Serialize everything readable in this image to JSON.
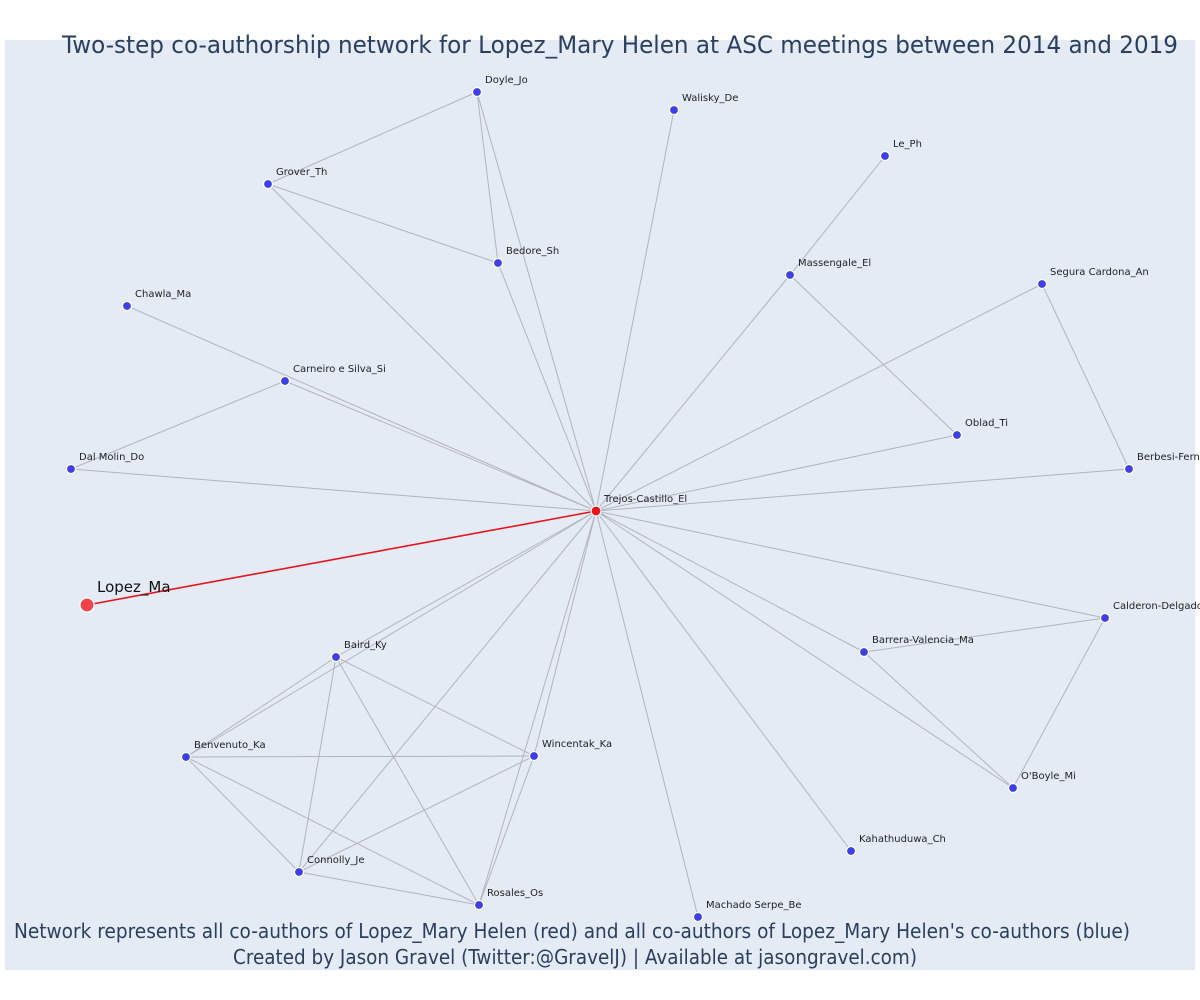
{
  "title": "Two-step co-authorship network for Lopez_Mary Helen at ASC meetings between 2014 and 2019",
  "caption": {
    "line1": "Network represents all co-authors of Lopez_Mary Helen (red) and all co-authors of Lopez_Mary Helen's co-authors (blue)",
    "line2": "Created by Jason Gravel (Twitter:@GravelJ) | Available at jasongravel.com)"
  },
  "colors": {
    "background": "#e5ebf5",
    "edge": "#b0b4c0",
    "focal_edge": "#e8141c",
    "focal_node": "#f0424a",
    "coauthor_node": "#e8141c",
    "second_step_node": "#3f3fe8"
  },
  "nodes": [
    {
      "id": "lopez",
      "label": "Lopez_Ma",
      "role": "focal"
    },
    {
      "id": "trejos",
      "label": "Trejos-Castillo_El",
      "role": "coauthor"
    },
    {
      "id": "doyle",
      "label": "Doyle_Jo",
      "role": "second"
    },
    {
      "id": "walisky",
      "label": "Walisky_De",
      "role": "second"
    },
    {
      "id": "le",
      "label": "Le_Ph",
      "role": "second"
    },
    {
      "id": "grover",
      "label": "Grover_Th",
      "role": "second"
    },
    {
      "id": "bedore",
      "label": "Bedore_Sh",
      "role": "second"
    },
    {
      "id": "massengale",
      "label": "Massengale_El",
      "role": "second"
    },
    {
      "id": "segura",
      "label": "Segura Cardona_An",
      "role": "second"
    },
    {
      "id": "chawla",
      "label": "Chawla_Ma",
      "role": "second"
    },
    {
      "id": "carneiro",
      "label": "Carneiro e Silva_Si",
      "role": "second"
    },
    {
      "id": "oblad",
      "label": "Oblad_Ti",
      "role": "second"
    },
    {
      "id": "dalmolin",
      "label": "Dal Molin_Do",
      "role": "second"
    },
    {
      "id": "berbesi",
      "label": "Berbesi-Fern",
      "role": "second"
    },
    {
      "id": "calderon",
      "label": "Calderon-Delgado",
      "role": "second"
    },
    {
      "id": "barrera",
      "label": "Barrera-Valencia_Ma",
      "role": "second"
    },
    {
      "id": "baird",
      "label": "Baird_Ky",
      "role": "second"
    },
    {
      "id": "benvenuto",
      "label": "Benvenuto_Ka",
      "role": "second"
    },
    {
      "id": "wincentak",
      "label": "Wincentak_Ka",
      "role": "second"
    },
    {
      "id": "oboyle",
      "label": "O'Boyle_Mi",
      "role": "second"
    },
    {
      "id": "kahathuduwa",
      "label": "Kahathuduwa_Ch",
      "role": "second"
    },
    {
      "id": "connolly",
      "label": "Connolly_Je",
      "role": "second"
    },
    {
      "id": "rosales",
      "label": "Rosales_Os",
      "role": "second"
    },
    {
      "id": "machado",
      "label": "Machado Serpe_Be",
      "role": "second"
    }
  ],
  "edges": [
    [
      "lopez",
      "trejos"
    ],
    [
      "trejos",
      "doyle"
    ],
    [
      "trejos",
      "walisky"
    ],
    [
      "trejos",
      "grover"
    ],
    [
      "trejos",
      "bedore"
    ],
    [
      "trejos",
      "massengale"
    ],
    [
      "trejos",
      "segura"
    ],
    [
      "trejos",
      "chawla"
    ],
    [
      "trejos",
      "carneiro"
    ],
    [
      "trejos",
      "oblad"
    ],
    [
      "trejos",
      "dalmolin"
    ],
    [
      "trejos",
      "berbesi"
    ],
    [
      "trejos",
      "calderon"
    ],
    [
      "trejos",
      "barrera"
    ],
    [
      "trejos",
      "baird"
    ],
    [
      "trejos",
      "benvenuto"
    ],
    [
      "trejos",
      "wincentak"
    ],
    [
      "trejos",
      "oboyle"
    ],
    [
      "trejos",
      "kahathuduwa"
    ],
    [
      "trejos",
      "connolly"
    ],
    [
      "trejos",
      "rosales"
    ],
    [
      "trejos",
      "machado"
    ],
    [
      "doyle",
      "grover"
    ],
    [
      "doyle",
      "bedore"
    ],
    [
      "grover",
      "bedore"
    ],
    [
      "le",
      "massengale"
    ],
    [
      "massengale",
      "oblad"
    ],
    [
      "carneiro",
      "dalmolin"
    ],
    [
      "segura",
      "berbesi"
    ],
    [
      "calderon",
      "barrera"
    ],
    [
      "calderon",
      "oboyle"
    ],
    [
      "barrera",
      "oboyle"
    ],
    [
      "baird",
      "benvenuto"
    ],
    [
      "baird",
      "wincentak"
    ],
    [
      "baird",
      "connolly"
    ],
    [
      "baird",
      "rosales"
    ],
    [
      "benvenuto",
      "wincentak"
    ],
    [
      "benvenuto",
      "connolly"
    ],
    [
      "benvenuto",
      "rosales"
    ],
    [
      "wincentak",
      "connolly"
    ],
    [
      "wincentak",
      "rosales"
    ],
    [
      "connolly",
      "rosales"
    ]
  ]
}
